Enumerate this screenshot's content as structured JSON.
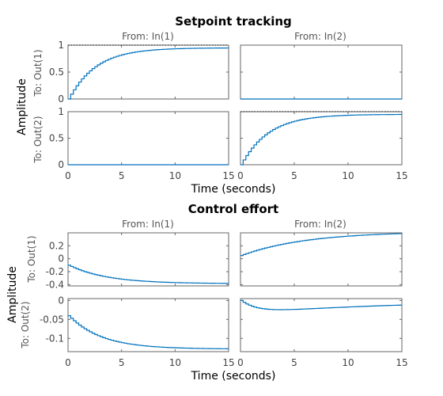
{
  "chart_data": [
    {
      "type": "line",
      "style": "step",
      "title": "Setpoint tracking",
      "xlabel": "Time (seconds)",
      "ylabel": "Amplitude",
      "columns": [
        "From: In(1)",
        "From: In(2)"
      ],
      "rows": [
        "To: Out(1)",
        "To: Out(2)"
      ],
      "xlim": [
        0,
        15
      ],
      "xticks": [
        0,
        5,
        10,
        15
      ],
      "row_ylim": [
        [
          0,
          1
        ],
        [
          0,
          1
        ]
      ],
      "row_yticks": [
        [
          0,
          0.5,
          1
        ],
        [
          0,
          0.5,
          1
        ]
      ],
      "series_color": "#0072bd",
      "panels": [
        {
          "row": 0,
          "col": 0,
          "kind": "rise",
          "final": 0.95,
          "tau": 2.5,
          "start": 0.0,
          "ref": 1
        },
        {
          "row": 0,
          "col": 1,
          "kind": "flat",
          "value": 0.0
        },
        {
          "row": 1,
          "col": 0,
          "kind": "flat",
          "value": 0.0
        },
        {
          "row": 1,
          "col": 1,
          "kind": "rise",
          "final": 0.95,
          "tau": 2.5,
          "start": 0.0,
          "ref": 1
        }
      ]
    },
    {
      "type": "line",
      "style": "step",
      "title": "Control effort",
      "xlabel": "Time (seconds)",
      "ylabel": "Amplitude",
      "columns": [
        "From: In(1)",
        "From: In(2)"
      ],
      "rows": [
        "To: Out(1)",
        "To: Out(2)"
      ],
      "xlim": [
        0,
        15
      ],
      "xticks": [
        0,
        5,
        10,
        15
      ],
      "row_ylim": [
        [
          -0.42,
          0.4
        ],
        [
          -0.135,
          0.005
        ]
      ],
      "row_yticks": [
        [
          -0.4,
          -0.2,
          0,
          0.2
        ],
        [
          -0.1,
          -0.05,
          0
        ]
      ],
      "series_color": "#0072bd",
      "panels": [
        {
          "row": 0,
          "col": 0,
          "kind": "exp",
          "start": -0.1,
          "final": -0.385,
          "tau": 3.5
        },
        {
          "row": 0,
          "col": 1,
          "kind": "exp",
          "start": 0.05,
          "final": 0.42,
          "tau": 6.0
        },
        {
          "row": 1,
          "col": 0,
          "kind": "exp",
          "start": -0.04,
          "final": -0.128,
          "tau": 3.0
        },
        {
          "row": 1,
          "col": 1,
          "kind": "hump",
          "amp": -0.028,
          "tau1": 1.6,
          "tau2": 14.0,
          "offset": 0.0
        }
      ]
    }
  ]
}
